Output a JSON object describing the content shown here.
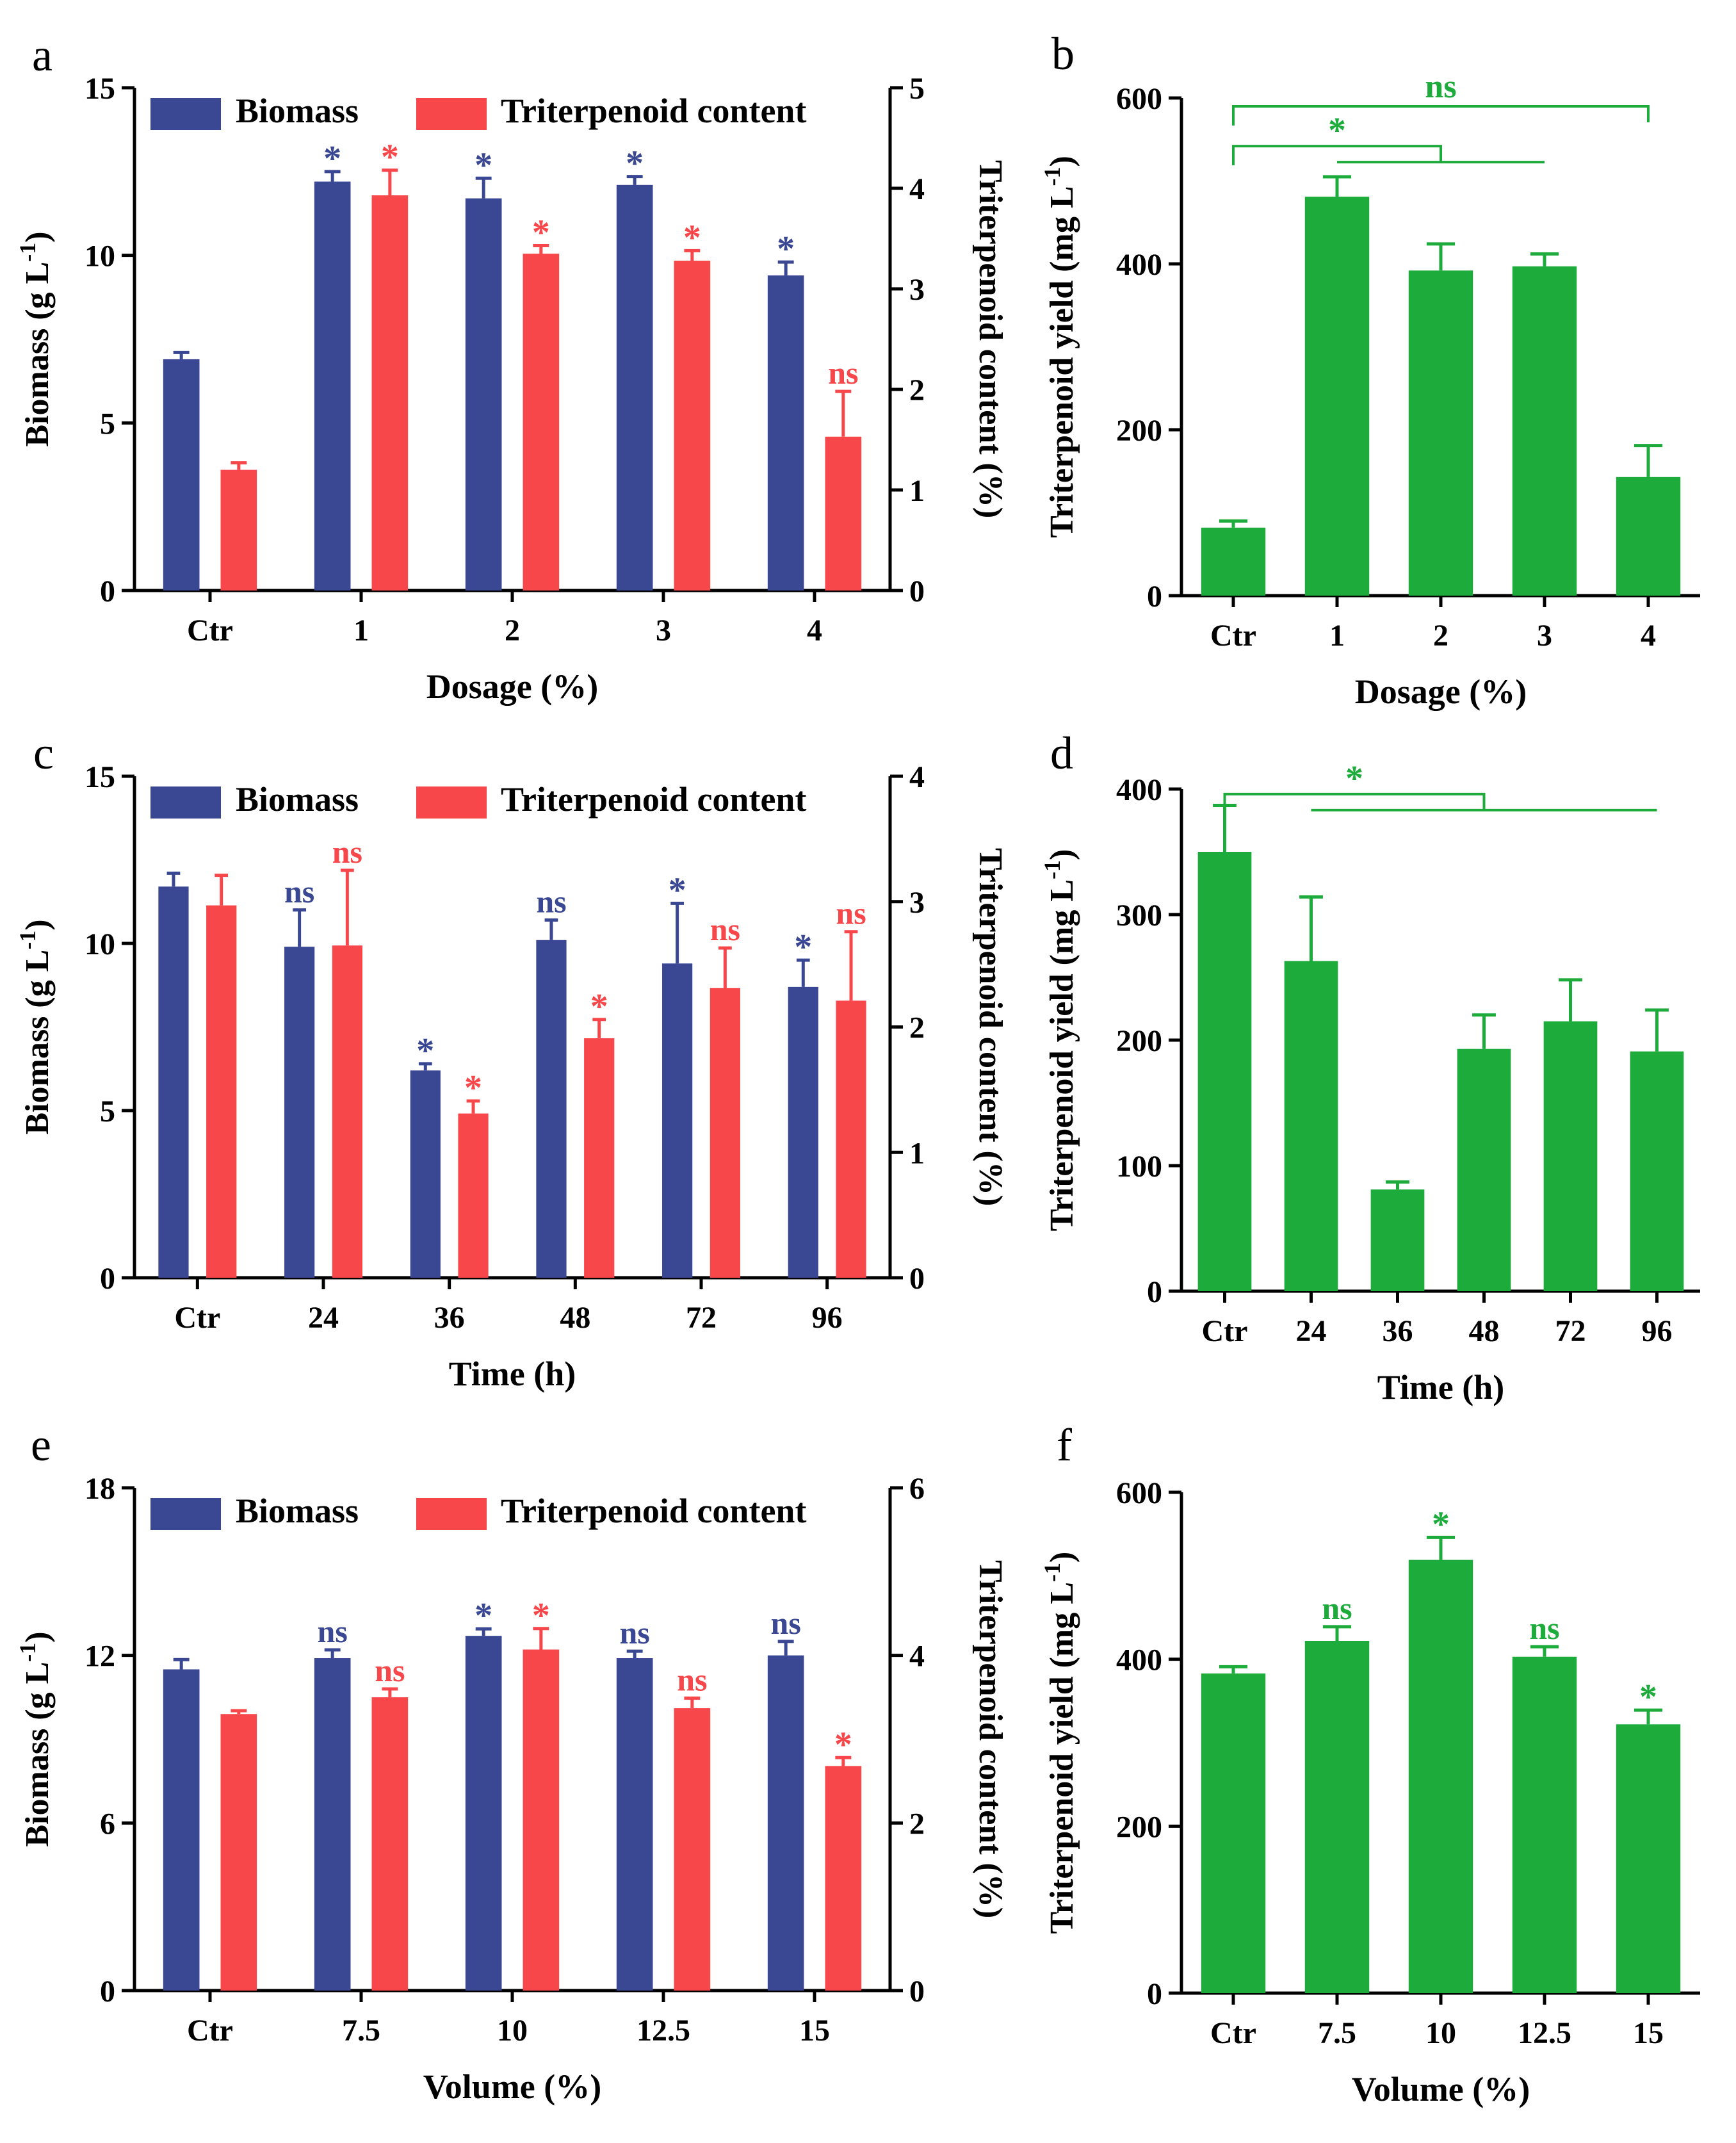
{
  "figure": {
    "colors": {
      "biomass": "#3A4793",
      "triterpenoid": "#F8474A",
      "yield": "#1DAB3C",
      "axis": "#000000"
    }
  },
  "chart_data": [
    {
      "panel": "a",
      "type": "bar",
      "kind": "dual",
      "xlabel": "Dosage (%)",
      "ylabel": "Biomass (g L-1)",
      "y2label": "Triterpenoid content (%)",
      "ylim": [
        0,
        15
      ],
      "yticks": [
        0,
        5,
        10,
        15
      ],
      "y2lim": [
        0,
        5
      ],
      "y2ticks": [
        0,
        1,
        2,
        3,
        4,
        5
      ],
      "categories": [
        "Ctr",
        "1",
        "2",
        "3",
        "4"
      ],
      "legend": [
        "Biomass",
        "Triterpenoid content"
      ],
      "series": [
        {
          "name": "Biomass",
          "axis": "left",
          "values": [
            6.9,
            12.2,
            11.7,
            12.1,
            9.4
          ],
          "errors": [
            0.2,
            0.3,
            0.6,
            0.25,
            0.4
          ],
          "labels": [
            "",
            "*",
            "*",
            "*",
            "*"
          ]
        },
        {
          "name": "Triterpenoid content",
          "axis": "right",
          "values": [
            1.2,
            3.93,
            3.35,
            3.28,
            1.53
          ],
          "errors": [
            0.07,
            0.25,
            0.08,
            0.1,
            0.45
          ],
          "labels": [
            "",
            "*",
            "*",
            "*",
            "ns"
          ]
        }
      ]
    },
    {
      "panel": "b",
      "type": "bar",
      "kind": "single",
      "xlabel": "Dosage (%)",
      "ylabel": "Triterpenoid yield (mg L-1)",
      "ylim": [
        0,
        600
      ],
      "yticks": [
        0,
        200,
        400,
        600
      ],
      "categories": [
        "Ctr",
        "1",
        "2",
        "3",
        "4"
      ],
      "series": [
        {
          "name": "Triterpenoid yield",
          "values": [
            82,
            481,
            392,
            397,
            143
          ],
          "errors": [
            8,
            24,
            32,
            15,
            38
          ],
          "labels": [
            "",
            "",
            "",
            "",
            ""
          ]
        }
      ],
      "brackets": [
        {
          "label": "ns",
          "from": 0,
          "to": 4,
          "value": 590,
          "join": null
        },
        {
          "label": "*",
          "from": 0,
          "to": 2,
          "value": 542,
          "join": [
            1,
            3
          ]
        }
      ]
    },
    {
      "panel": "c",
      "type": "bar",
      "kind": "dual",
      "xlabel": "Time (h)",
      "ylabel": "Biomass (g L-1)",
      "y2label": "Triterpenoid content (%)",
      "ylim": [
        0,
        15
      ],
      "yticks": [
        0,
        5,
        10,
        15
      ],
      "y2lim": [
        0,
        4
      ],
      "y2ticks": [
        0,
        1,
        2,
        3,
        4
      ],
      "categories": [
        "Ctr",
        "24",
        "36",
        "48",
        "72",
        "96"
      ],
      "legend": [
        "Biomass",
        "Triterpenoid content"
      ],
      "series": [
        {
          "name": "Biomass",
          "axis": "left",
          "values": [
            11.7,
            9.9,
            6.2,
            10.1,
            9.4,
            8.7
          ],
          "errors": [
            0.4,
            1.1,
            0.2,
            0.6,
            1.8,
            0.8
          ],
          "labels": [
            "",
            "ns",
            "*",
            "ns",
            "*",
            "*"
          ]
        },
        {
          "name": "Triterpenoid content",
          "axis": "right",
          "values": [
            2.97,
            2.65,
            1.31,
            1.91,
            2.31,
            2.21
          ],
          "errors": [
            0.24,
            0.6,
            0.1,
            0.15,
            0.32,
            0.55
          ],
          "labels": [
            "",
            "ns",
            "*",
            "*",
            "ns",
            "ns"
          ]
        }
      ]
    },
    {
      "panel": "d",
      "type": "bar",
      "kind": "single",
      "xlabel": "Time (h)",
      "ylabel": "Triterpenoid yield (mg L-1)",
      "ylim": [
        0,
        400
      ],
      "yticks": [
        0,
        100,
        200,
        300,
        400
      ],
      "categories": [
        "Ctr",
        "24",
        "36",
        "48",
        "72",
        "96"
      ],
      "series": [
        {
          "name": "Triterpenoid yield",
          "values": [
            350,
            263,
            81,
            193,
            215,
            191
          ],
          "errors": [
            37,
            51,
            6,
            27,
            33,
            33
          ],
          "labels": [
            "",
            "",
            "",
            "",
            "",
            ""
          ]
        }
      ],
      "brackets": [
        {
          "label": "*",
          "from": 0,
          "to": 3,
          "value": 396,
          "join": [
            1,
            5
          ]
        }
      ]
    },
    {
      "panel": "e",
      "type": "bar",
      "kind": "dual",
      "xlabel": "Volume (%)",
      "ylabel": "Biomass (g L-1)",
      "y2label": "Triterpenoid content (%)",
      "ylim": [
        0,
        18
      ],
      "yticks": [
        0,
        6,
        12,
        18
      ],
      "y2lim": [
        0,
        6
      ],
      "y2ticks": [
        0,
        2,
        4,
        6
      ],
      "categories": [
        "Ctr",
        "7.5",
        "10",
        "12.5",
        "15"
      ],
      "legend": [
        "Biomass",
        "Triterpenoid content"
      ],
      "series": [
        {
          "name": "Biomass",
          "axis": "left",
          "values": [
            11.5,
            11.9,
            12.7,
            11.9,
            12.0
          ],
          "errors": [
            0.35,
            0.3,
            0.25,
            0.25,
            0.5
          ],
          "labels": [
            "",
            "ns",
            "*",
            "ns",
            "ns"
          ]
        },
        {
          "name": "Triterpenoid content",
          "axis": "right",
          "values": [
            3.3,
            3.5,
            4.07,
            3.37,
            2.68
          ],
          "errors": [
            0.04,
            0.1,
            0.25,
            0.12,
            0.1
          ],
          "labels": [
            "",
            "ns",
            "*",
            "ns",
            "*"
          ]
        }
      ]
    },
    {
      "panel": "f",
      "type": "bar",
      "kind": "single",
      "xlabel": "Volume (%)",
      "ylabel": "Triterpenoid yield (mg L-1)",
      "ylim": [
        0,
        600
      ],
      "yticks": [
        0,
        200,
        400,
        600
      ],
      "categories": [
        "Ctr",
        "7.5",
        "10",
        "12.5",
        "15"
      ],
      "series": [
        {
          "name": "Triterpenoid yield",
          "values": [
            383,
            422,
            519,
            403,
            322
          ],
          "errors": [
            8,
            17,
            27,
            12,
            17
          ],
          "labels": [
            "",
            "ns",
            "*",
            "ns",
            "*"
          ]
        }
      ]
    }
  ]
}
